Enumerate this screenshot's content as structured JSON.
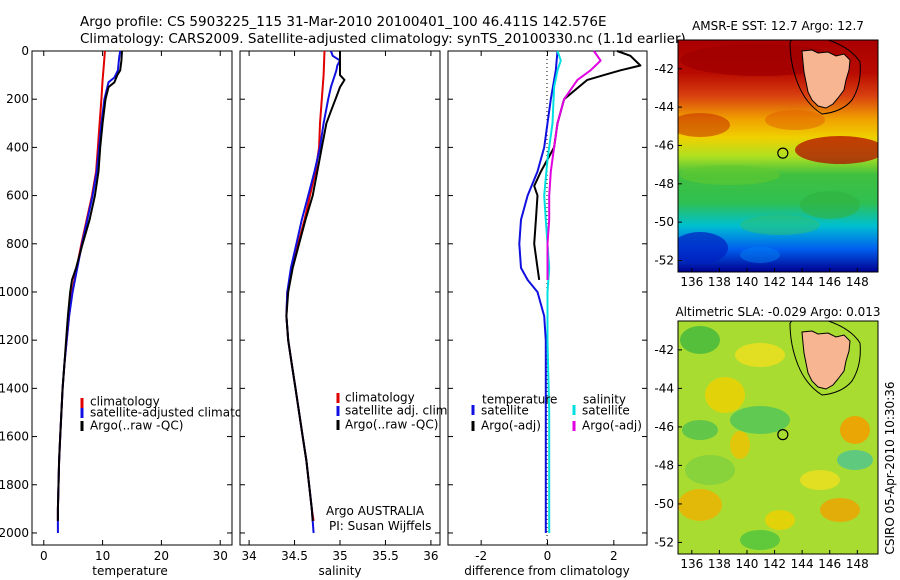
{
  "header": {
    "line1": "Argo profile: CS 5903225_115 31-Mar-2010 20100401_100 46.411S 142.576E",
    "line2": "Climatology: CARS2009. Satellite-adjusted climatology: synTS_20100330.nc (1.1d earlier)"
  },
  "side_stamp": "CSIRO 05-Apr-2010 10:30:36",
  "colors": {
    "climatology": "#e00000",
    "satellite": "#1010e0",
    "argo": "#000000",
    "cyan": "#00e0e0",
    "magenta": "#e000e0"
  },
  "chart_data": [
    {
      "type": "line",
      "xlabel": "temperature",
      "ylabel": "",
      "xlim": [
        -2,
        32
      ],
      "ylim": [
        2050,
        0
      ],
      "xticks": [
        "0",
        "10",
        "20",
        "30"
      ],
      "yticks": [
        "0",
        "200",
        "400",
        "600",
        "800",
        "1000",
        "1200",
        "1400",
        "1600",
        "1800",
        "2000"
      ],
      "legend": [
        "climatology",
        "satellite-adjusted climatology",
        "Argo(..raw -QC)"
      ],
      "series": [
        {
          "name": "climatology",
          "color": "climatology",
          "points": [
            [
              10.4,
              0
            ],
            [
              10.2,
              60
            ],
            [
              10.0,
              120
            ],
            [
              9.8,
              200
            ],
            [
              9.5,
              300
            ],
            [
              9.2,
              400
            ],
            [
              8.9,
              500
            ],
            [
              8.2,
              600
            ],
            [
              7.3,
              700
            ],
            [
              6.4,
              800
            ],
            [
              5.6,
              900
            ],
            [
              4.8,
              1000
            ],
            [
              4.3,
              1100
            ],
            [
              3.9,
              1200
            ],
            [
              3.5,
              1300
            ],
            [
              3.2,
              1400
            ],
            [
              3.0,
              1500
            ],
            [
              2.8,
              1600
            ],
            [
              2.6,
              1700
            ],
            [
              2.5,
              1800
            ],
            [
              2.4,
              1900
            ],
            [
              2.4,
              1950
            ]
          ]
        },
        {
          "name": "satellite-adjusted climatology",
          "color": "satellite",
          "points": [
            [
              13.0,
              0
            ],
            [
              12.8,
              30
            ],
            [
              12.6,
              80
            ],
            [
              12.0,
              110
            ],
            [
              11.0,
              130
            ],
            [
              10.3,
              200
            ],
            [
              9.8,
              300
            ],
            [
              9.4,
              400
            ],
            [
              9.0,
              500
            ],
            [
              8.3,
              600
            ],
            [
              7.4,
              700
            ],
            [
              6.5,
              800
            ],
            [
              5.7,
              900
            ],
            [
              4.9,
              1000
            ],
            [
              4.3,
              1100
            ],
            [
              3.9,
              1200
            ],
            [
              3.5,
              1300
            ],
            [
              3.2,
              1400
            ],
            [
              3.0,
              1500
            ],
            [
              2.8,
              1600
            ],
            [
              2.6,
              1700
            ],
            [
              2.5,
              1800
            ],
            [
              2.4,
              1900
            ],
            [
              2.4,
              2000
            ]
          ]
        },
        {
          "name": "Argo(..raw -QC)",
          "color": "argo",
          "points": [
            [
              13.3,
              0
            ],
            [
              13.2,
              40
            ],
            [
              13.0,
              80
            ],
            [
              12.5,
              100
            ],
            [
              12.0,
              130
            ],
            [
              11.0,
              150
            ],
            [
              10.5,
              200
            ],
            [
              10.0,
              300
            ],
            [
              9.6,
              400
            ],
            [
              9.3,
              500
            ],
            [
              8.7,
              600
            ],
            [
              7.8,
              700
            ],
            [
              6.6,
              800
            ],
            [
              5.5,
              900
            ],
            [
              4.8,
              950
            ],
            [
              4.5,
              1000
            ],
            [
              4.1,
              1100
            ],
            [
              3.8,
              1200
            ],
            [
              3.5,
              1300
            ],
            [
              3.2,
              1400
            ],
            [
              3.0,
              1500
            ],
            [
              2.8,
              1600
            ],
            [
              2.6,
              1700
            ],
            [
              2.5,
              1800
            ],
            [
              2.4,
              1900
            ],
            [
              2.4,
              1950
            ]
          ]
        }
      ]
    },
    {
      "type": "line",
      "xlabel": "salinity",
      "ylabel": "",
      "xlim": [
        33.9,
        36.1
      ],
      "ylim": [
        2050,
        0
      ],
      "xticks": [
        "34",
        "34.5",
        "35",
        "35.5",
        "36"
      ],
      "legend": [
        "climatology",
        "satellite adj. clim.",
        "Argo(..raw -QC)"
      ],
      "annotations": [
        "Argo AUSTRALIA",
        "PI: Susan Wijffels"
      ],
      "series": [
        {
          "name": "climatology",
          "color": "climatology",
          "points": [
            [
              34.83,
              0
            ],
            [
              34.82,
              100
            ],
            [
              34.8,
              200
            ],
            [
              34.78,
              300
            ],
            [
              34.77,
              400
            ],
            [
              34.73,
              500
            ],
            [
              34.67,
              600
            ],
            [
              34.61,
              700
            ],
            [
              34.54,
              800
            ],
            [
              34.47,
              900
            ],
            [
              34.42,
              1000
            ],
            [
              34.41,
              1100
            ],
            [
              34.43,
              1200
            ],
            [
              34.47,
              1300
            ],
            [
              34.51,
              1400
            ],
            [
              34.55,
              1500
            ],
            [
              34.59,
              1600
            ],
            [
              34.63,
              1700
            ],
            [
              34.66,
              1800
            ],
            [
              34.69,
              1900
            ],
            [
              34.71,
              1950
            ]
          ]
        },
        {
          "name": "satellite adj. clim.",
          "color": "satellite",
          "points": [
            [
              34.9,
              0
            ],
            [
              34.92,
              20
            ],
            [
              35.0,
              40
            ],
            [
              34.97,
              60
            ],
            [
              34.96,
              80
            ],
            [
              34.9,
              150
            ],
            [
              34.87,
              200
            ],
            [
              34.82,
              300
            ],
            [
              34.78,
              400
            ],
            [
              34.72,
              500
            ],
            [
              34.65,
              600
            ],
            [
              34.58,
              700
            ],
            [
              34.52,
              800
            ],
            [
              34.46,
              900
            ],
            [
              34.42,
              1000
            ],
            [
              34.41,
              1100
            ],
            [
              34.43,
              1200
            ],
            [
              34.47,
              1300
            ],
            [
              34.51,
              1400
            ],
            [
              34.55,
              1500
            ],
            [
              34.59,
              1600
            ],
            [
              34.63,
              1700
            ],
            [
              34.66,
              1800
            ],
            [
              34.69,
              1900
            ],
            [
              34.71,
              2000
            ]
          ]
        },
        {
          "name": "Argo(..raw -QC)",
          "color": "argo",
          "points": [
            [
              35.0,
              0
            ],
            [
              35.0,
              50
            ],
            [
              35.0,
              100
            ],
            [
              35.05,
              120
            ],
            [
              35.0,
              150
            ],
            [
              34.95,
              200
            ],
            [
              34.9,
              250
            ],
            [
              34.85,
              300
            ],
            [
              34.8,
              400
            ],
            [
              34.75,
              500
            ],
            [
              34.7,
              600
            ],
            [
              34.62,
              700
            ],
            [
              34.55,
              800
            ],
            [
              34.48,
              900
            ],
            [
              34.43,
              1000
            ],
            [
              34.41,
              1100
            ],
            [
              34.43,
              1200
            ],
            [
              34.47,
              1300
            ],
            [
              34.51,
              1400
            ],
            [
              34.55,
              1500
            ],
            [
              34.59,
              1600
            ],
            [
              34.63,
              1700
            ],
            [
              34.66,
              1800
            ],
            [
              34.69,
              1900
            ],
            [
              34.7,
              1950
            ]
          ]
        }
      ]
    },
    {
      "type": "line",
      "xlabel": "difference from climatology",
      "ylabel": "",
      "xlim": [
        -3,
        3
      ],
      "ylim": [
        2050,
        0
      ],
      "xticks": [
        "-2",
        "0",
        "2"
      ],
      "legend_left_title": "temperature",
      "legend_left": [
        "satellite",
        "Argo(-adj)"
      ],
      "legend_right_title": "salinity",
      "legend_right": [
        "satellite",
        "Argo(-adj)"
      ],
      "series": [
        {
          "name": "satellite",
          "color": "satellite",
          "points": [
            [
              0.3,
              0
            ],
            [
              0.25,
              80
            ],
            [
              0.1,
              200
            ],
            [
              0.0,
              300
            ],
            [
              -0.1,
              400
            ],
            [
              -0.3,
              500
            ],
            [
              -0.6,
              600
            ],
            [
              -0.8,
              700
            ],
            [
              -0.85,
              800
            ],
            [
              -0.8,
              900
            ],
            [
              -0.6,
              950
            ],
            [
              -0.3,
              1000
            ],
            [
              -0.1,
              1100
            ],
            [
              -0.05,
              1200
            ],
            [
              -0.05,
              1500
            ],
            [
              -0.05,
              1800
            ],
            [
              -0.05,
              2000
            ]
          ]
        },
        {
          "name": "Argo(-adj)",
          "color": "argo",
          "points": [
            [
              2.1,
              0
            ],
            [
              2.5,
              20
            ],
            [
              2.8,
              60
            ],
            [
              2.2,
              80
            ],
            [
              1.7,
              100
            ],
            [
              1.2,
              120
            ],
            [
              0.5,
              200
            ],
            [
              0.3,
              300
            ],
            [
              0.2,
              400
            ],
            [
              -0.2,
              500
            ],
            [
              -0.4,
              560
            ],
            [
              -0.3,
              600
            ],
            [
              -0.35,
              700
            ],
            [
              -0.4,
              800
            ],
            [
              -0.3,
              900
            ],
            [
              -0.25,
              950
            ]
          ]
        },
        {
          "name": "satellite",
          "color": "cyan",
          "points": [
            [
              0.3,
              0
            ],
            [
              0.4,
              40
            ],
            [
              0.3,
              80
            ],
            [
              0.2,
              150
            ],
            [
              0.15,
              300
            ],
            [
              0.0,
              450
            ],
            [
              -0.1,
              600
            ],
            [
              -0.05,
              700
            ],
            [
              0.0,
              800
            ],
            [
              0.05,
              900
            ],
            [
              0.0,
              1000
            ],
            [
              0.0,
              1200
            ],
            [
              0.05,
              1500
            ],
            [
              0.05,
              1800
            ],
            [
              0.05,
              2000
            ]
          ]
        },
        {
          "name": "Argo(-adj)",
          "color": "magenta",
          "points": [
            [
              1.4,
              0
            ],
            [
              1.6,
              40
            ],
            [
              1.3,
              80
            ],
            [
              0.9,
              120
            ],
            [
              0.5,
              200
            ],
            [
              0.3,
              300
            ],
            [
              0.2,
              400
            ],
            [
              0.1,
              500
            ],
            [
              0.05,
              600
            ],
            [
              0.05,
              700
            ],
            [
              0.0,
              800
            ],
            [
              0.0,
              950
            ]
          ]
        }
      ]
    },
    {
      "type": "heatmap",
      "title": "AMSR-E SST: 12.7 Argo: 12.7",
      "xticks": [
        "136",
        "138",
        "140",
        "142",
        "144",
        "146",
        "148"
      ],
      "yticks": [
        "-42",
        "-44",
        "-46",
        "-48",
        "-50",
        "-52"
      ],
      "xlim": [
        135,
        149.5
      ],
      "ylim": [
        -52.6,
        -40.5
      ],
      "argo_position": [
        142.6,
        -46.4
      ]
    },
    {
      "type": "heatmap",
      "title": "Altimetric SLA: -0.029 Argo: 0.013",
      "xticks": [
        "136",
        "138",
        "140",
        "142",
        "144",
        "146",
        "148"
      ],
      "yticks": [
        "-42",
        "-44",
        "-46",
        "-48",
        "-50",
        "-52"
      ],
      "xlim": [
        135,
        149.5
      ],
      "ylim": [
        -52.6,
        -40.5
      ],
      "argo_position": [
        142.6,
        -46.4
      ]
    }
  ]
}
